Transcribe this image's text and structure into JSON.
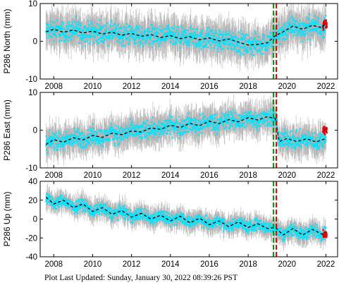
{
  "footer": "Plot Last Updated:   Sunday, January 30, 2022 08:39:26 PST",
  "colors": {
    "data": "#00e5ff",
    "error_bars": "#b4b4b4",
    "recent_data": "#e00000",
    "model": "#000000",
    "event_red": "#e00000",
    "event_green": "#00a000",
    "frame": "#000000"
  },
  "chart_data": [
    {
      "type": "scatter",
      "ylabel": "P286 North (mm)",
      "xlim": [
        2007.3,
        2022.6
      ],
      "ylim": [
        -10,
        10
      ],
      "xticks": [
        2008,
        2010,
        2012,
        2014,
        2016,
        2018,
        2020,
        2022
      ],
      "yticks": [
        -10,
        0,
        10
      ],
      "event_lines": [
        2019.3,
        2019.45
      ],
      "series": [
        {
          "kind": "model",
          "x": [
            2007.6,
            2008.0,
            2008.5,
            2009.0,
            2009.5,
            2010.0,
            2010.5,
            2011.0,
            2011.5,
            2012.0,
            2012.5,
            2013.0,
            2013.5,
            2014.0,
            2014.5,
            2015.0,
            2015.5,
            2016.0,
            2016.5,
            2017.0,
            2017.5,
            2018.0,
            2018.5,
            2019.0,
            2019.4,
            2019.8,
            2020.3,
            2020.8,
            2021.3,
            2021.8,
            2022.0
          ],
          "y": [
            2.5,
            3.2,
            2.4,
            3.0,
            2.2,
            2.7,
            1.9,
            2.4,
            1.6,
            2.1,
            1.3,
            1.8,
            1.0,
            1.5,
            0.7,
            1.2,
            0.4,
            0.9,
            0.1,
            0.6,
            -0.2,
            -1.0,
            -0.8,
            -0.4,
            1.5,
            2.5,
            4.0,
            3.2,
            4.2,
            3.6,
            4.8
          ]
        },
        {
          "kind": "observed",
          "x_range": [
            2007.6,
            2022.0
          ],
          "spread": 4.0,
          "error": 3.5
        },
        {
          "kind": "recent",
          "x_range": [
            2021.85,
            2022.05
          ],
          "center": 4.5,
          "spread": 2.0
        }
      ]
    },
    {
      "type": "scatter",
      "ylabel": "P286 East (mm)",
      "xlim": [
        2007.3,
        2022.6
      ],
      "ylim": [
        -10,
        10
      ],
      "xticks": [
        2008,
        2010,
        2012,
        2014,
        2016,
        2018,
        2020,
        2022
      ],
      "yticks": [
        -10,
        0,
        10
      ],
      "event_lines": [
        2019.3,
        2019.45
      ],
      "series": [
        {
          "kind": "model",
          "x": [
            2007.6,
            2008.0,
            2008.5,
            2009.0,
            2009.5,
            2010.0,
            2010.5,
            2011.0,
            2011.5,
            2012.0,
            2012.5,
            2013.0,
            2013.5,
            2014.0,
            2014.5,
            2015.0,
            2015.5,
            2016.0,
            2016.5,
            2017.0,
            2017.5,
            2018.0,
            2018.5,
            2019.0,
            2019.4,
            2019.6,
            2020.0,
            2020.5,
            2021.0,
            2021.5,
            2022.0
          ],
          "y": [
            -3.8,
            -2.5,
            -3.2,
            -2.0,
            -2.6,
            -1.4,
            -1.9,
            -0.8,
            -1.2,
            -0.2,
            -0.5,
            0.6,
            0.2,
            1.3,
            0.7,
            1.8,
            1.2,
            2.4,
            1.7,
            2.8,
            2.2,
            3.3,
            2.7,
            3.6,
            3.0,
            -3.0,
            -2.2,
            -3.0,
            -2.3,
            -3.1,
            -2.2
          ]
        },
        {
          "kind": "observed",
          "x_range": [
            2007.6,
            2022.0
          ],
          "spread": 3.5,
          "error": 3.0
        },
        {
          "kind": "recent",
          "x_range": [
            2021.85,
            2022.05
          ],
          "center": 0.0,
          "spread": 1.5
        }
      ]
    },
    {
      "type": "scatter",
      "ylabel": "P286 Up (mm)",
      "xlim": [
        2007.3,
        2022.6
      ],
      "ylim": [
        -40,
        40
      ],
      "xticks": [
        2008,
        2010,
        2012,
        2014,
        2016,
        2018,
        2020,
        2022
      ],
      "yticks": [
        -40,
        -20,
        0,
        20,
        40
      ],
      "event_lines": [
        2019.3,
        2019.45
      ],
      "series": [
        {
          "kind": "model",
          "x": [
            2007.6,
            2008.0,
            2008.5,
            2009.0,
            2009.5,
            2010.0,
            2010.5,
            2011.0,
            2011.5,
            2012.0,
            2012.5,
            2013.0,
            2013.5,
            2014.0,
            2014.5,
            2015.0,
            2015.5,
            2016.0,
            2016.5,
            2017.0,
            2017.5,
            2018.0,
            2018.5,
            2019.0,
            2019.4,
            2019.8,
            2020.3,
            2020.8,
            2021.3,
            2021.8,
            2022.0
          ],
          "y": [
            23,
            16,
            20,
            12,
            16,
            8,
            12,
            5,
            9,
            2,
            6,
            0,
            4,
            -2,
            3,
            -4,
            1,
            -6,
            -2,
            -8,
            -3,
            -9,
            -5,
            -10,
            -9,
            -17,
            -10,
            -17,
            -11,
            -16,
            -14
          ]
        },
        {
          "kind": "observed",
          "x_range": [
            2007.6,
            2022.0
          ],
          "spread": 9.0,
          "error": 8.0
        },
        {
          "kind": "recent",
          "x_range": [
            2021.85,
            2022.05
          ],
          "center": -16.0,
          "spread": 5.0
        }
      ]
    }
  ]
}
